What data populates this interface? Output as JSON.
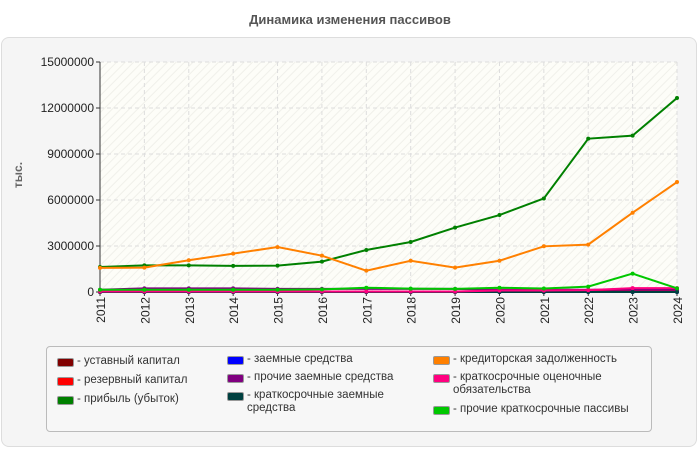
{
  "chart_data": {
    "type": "line",
    "title": "Динамика изменения пассивов",
    "ylabel": "тыс.",
    "xlabel": "",
    "ylim": [
      0,
      15000000
    ],
    "yticks": [
      "0",
      "3000000",
      "6000000",
      "9000000",
      "12000000",
      "15000000"
    ],
    "grid": true,
    "legend_position": "bottom",
    "categories": [
      "2011",
      "2012",
      "2013",
      "2014",
      "2015",
      "2016",
      "2017",
      "2018",
      "2019",
      "2020",
      "2021",
      "2022",
      "2023",
      "2024"
    ],
    "series": [
      {
        "name": "уставный капитал",
        "color": "#800000",
        "values": [
          10000,
          10000,
          10000,
          10000,
          10000,
          10000,
          10000,
          10000,
          10000,
          10000,
          10000,
          10000,
          10000,
          10000
        ]
      },
      {
        "name": "резервный капитал",
        "color": "#ff0000",
        "values": [
          0,
          0,
          0,
          0,
          0,
          0,
          0,
          0,
          0,
          30000,
          50000,
          60000,
          80000,
          90000
        ]
      },
      {
        "name": "прибыль (убыток)",
        "color": "#008000",
        "values": [
          1630000,
          1740000,
          1740000,
          1700000,
          1720000,
          1980000,
          2740000,
          3260000,
          4200000,
          5020000,
          6100000,
          10000000,
          10200000,
          12650000
        ]
      },
      {
        "name": "заемные средства",
        "color": "#0000ff",
        "values": [
          0,
          0,
          0,
          0,
          0,
          0,
          0,
          0,
          0,
          0,
          0,
          0,
          0,
          0
        ]
      },
      {
        "name": "прочие заемные средства",
        "color": "#800080",
        "values": [
          150000,
          240000,
          240000,
          240000,
          200000,
          200000,
          200000,
          200000,
          200000,
          150000,
          150000,
          150000,
          150000,
          150000
        ]
      },
      {
        "name": "краткосрочные заемные средства",
        "color": "#004040",
        "values": [
          0,
          0,
          0,
          0,
          0,
          0,
          0,
          0,
          0,
          0,
          0,
          0,
          0,
          0
        ]
      },
      {
        "name": "кредиторская задолженность",
        "color": "#ff8000",
        "values": [
          1570000,
          1590000,
          2070000,
          2500000,
          2930000,
          2370000,
          1390000,
          2040000,
          1590000,
          2040000,
          2980000,
          3090000,
          5170000,
          7170000
        ]
      },
      {
        "name": "краткосрочные оценочные обязательства",
        "color": "#ff0080",
        "values": [
          30000,
          30000,
          30000,
          30000,
          30000,
          30000,
          30000,
          30000,
          30000,
          100000,
          100000,
          120000,
          250000,
          250000
        ]
      },
      {
        "name": "прочие краткосрочные пассивы",
        "color": "#00c800",
        "values": [
          150000,
          150000,
          150000,
          150000,
          150000,
          170000,
          280000,
          220000,
          200000,
          280000,
          230000,
          350000,
          1200000,
          240000
        ]
      }
    ]
  }
}
